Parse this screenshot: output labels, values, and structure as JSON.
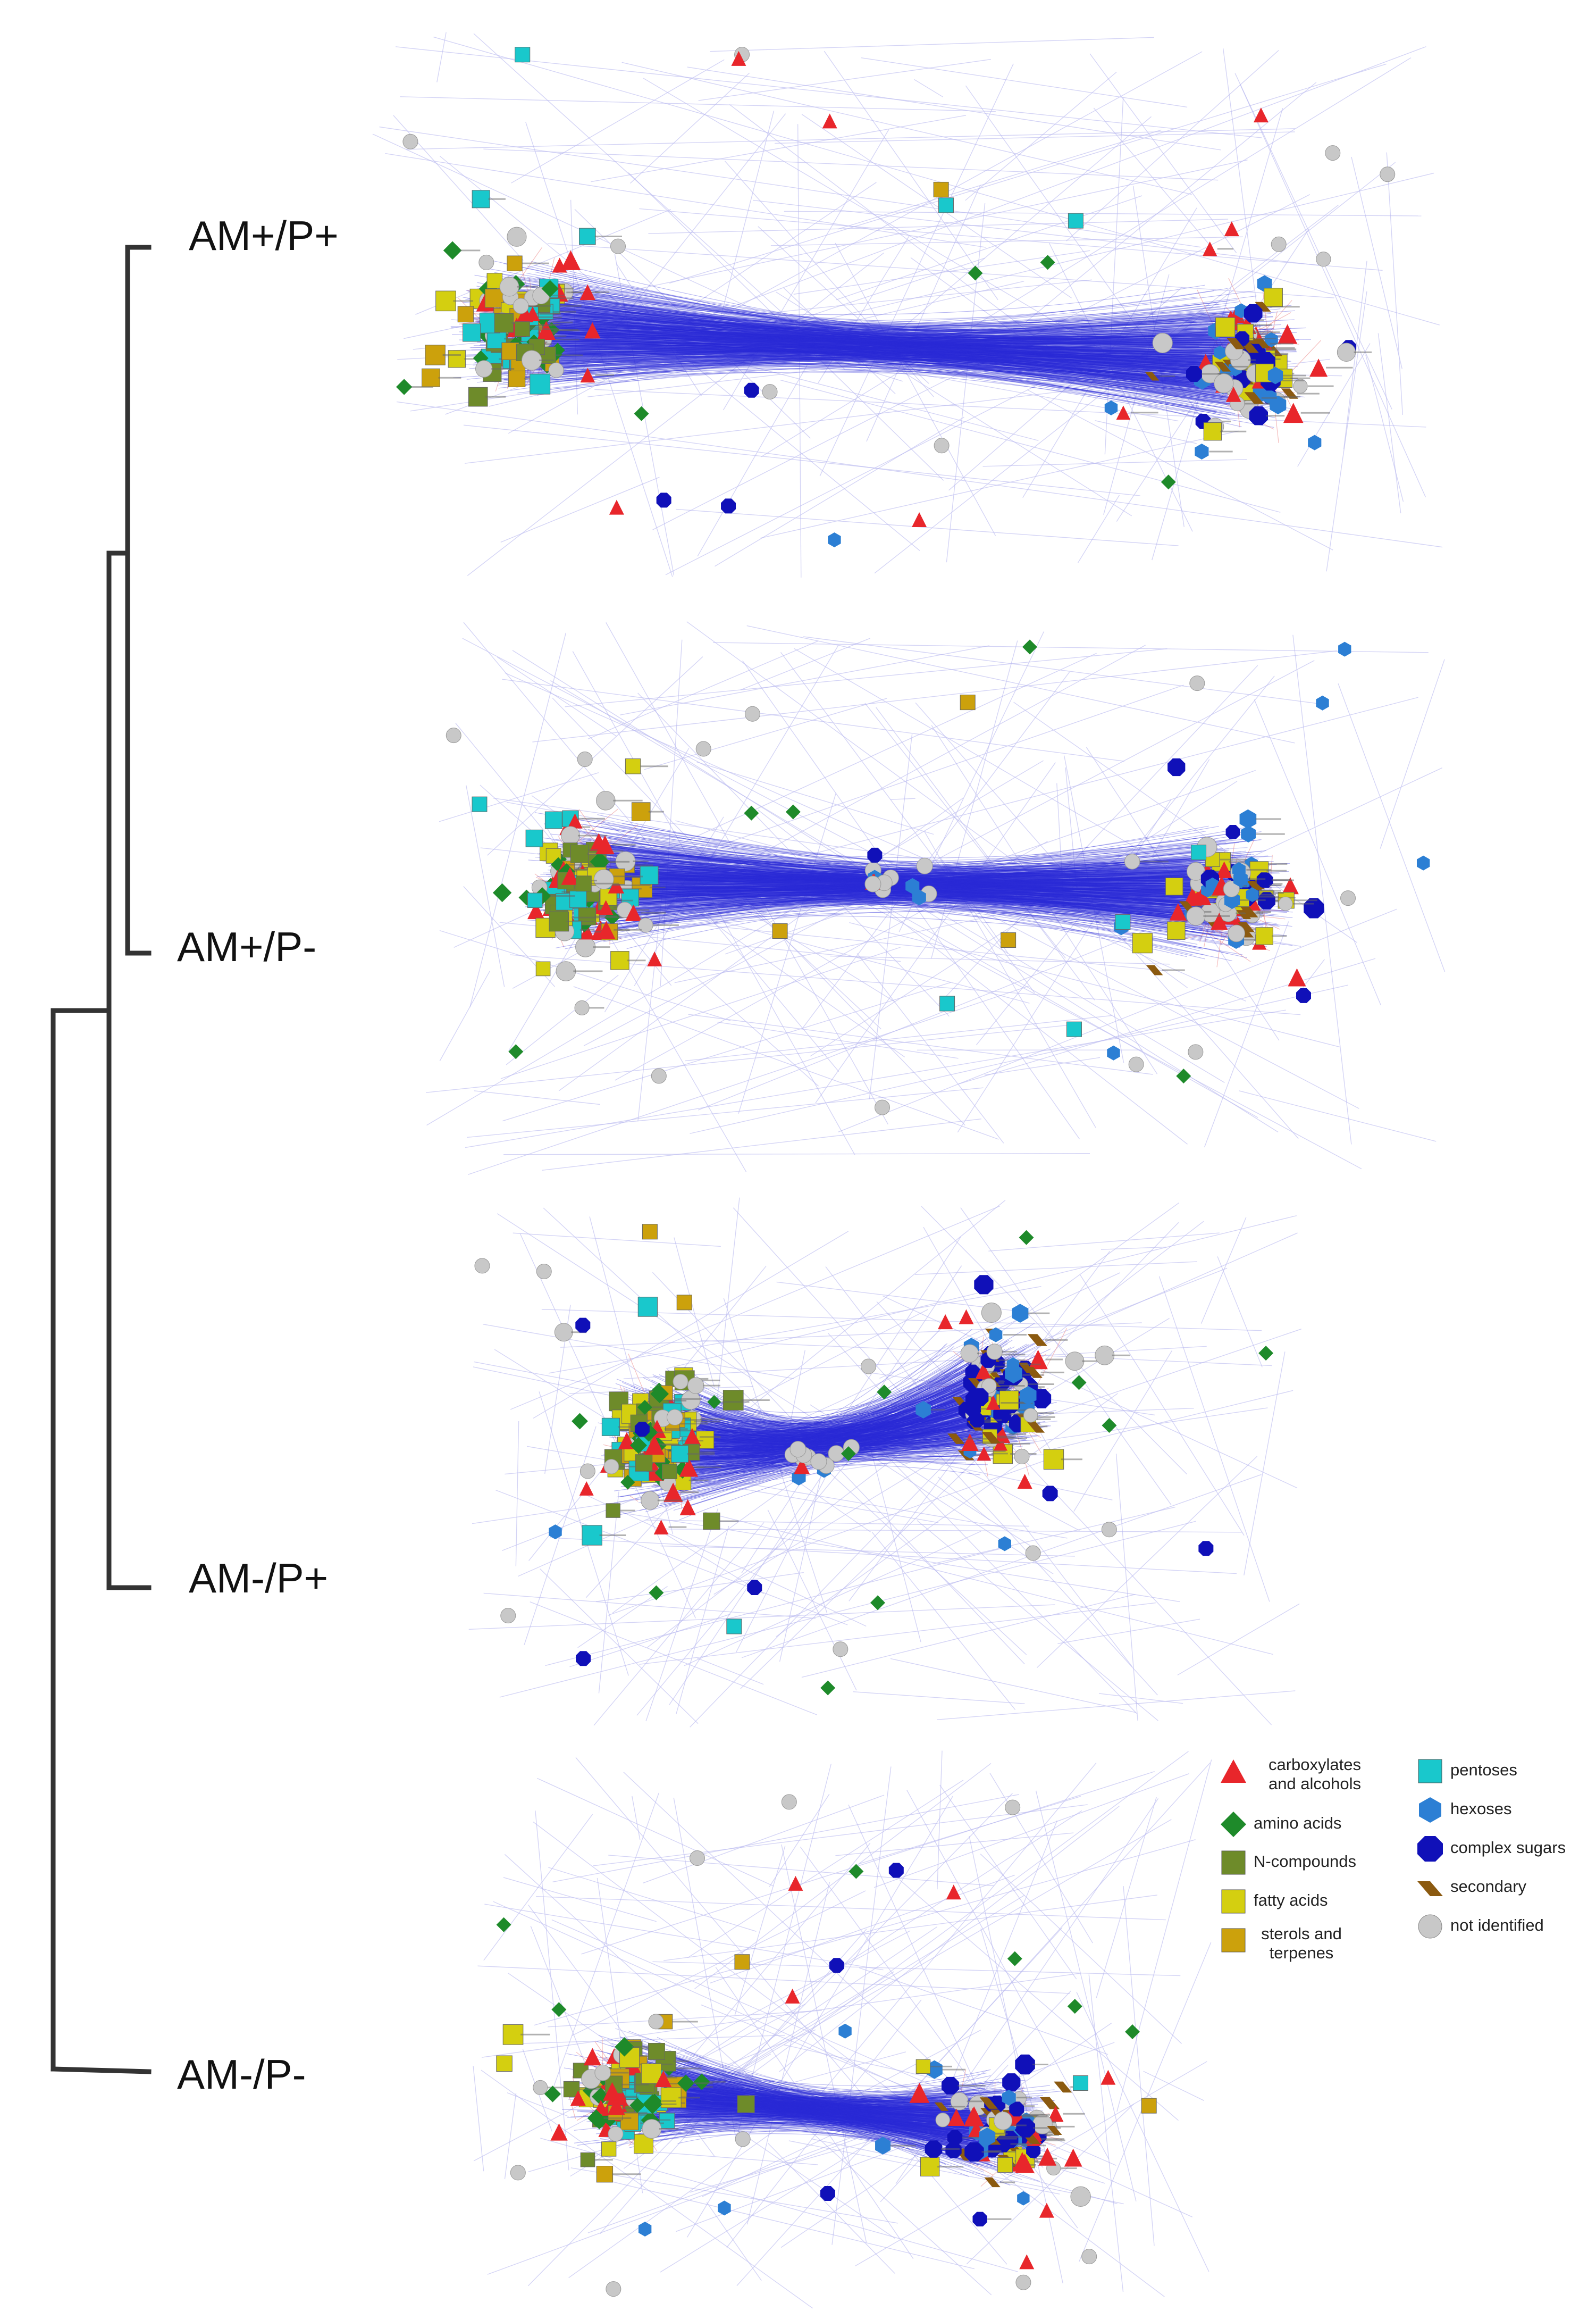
{
  "groups": [
    {
      "label": "AM+/P+",
      "seed": 11
    },
    {
      "label": "AM+/P-",
      "seed": 23
    },
    {
      "label": "AM-/P+",
      "seed": 37
    },
    {
      "label": "AM-/P-",
      "seed": 53
    }
  ],
  "legend": [
    {
      "key": "carboxylates",
      "label": "carboxylates and alcohols",
      "shape": "triangle",
      "color": "#e8262b"
    },
    {
      "key": "amino",
      "label": "amino acids",
      "shape": "diamond",
      "color": "#1e8a2a"
    },
    {
      "key": "ncomp",
      "label": "N-compounds",
      "shape": "square",
      "color": "#6e8b2a"
    },
    {
      "key": "fatty",
      "label": "fatty acids",
      "shape": "square",
      "color": "#d4cf10"
    },
    {
      "key": "sterols",
      "label": "sterols and terpenes",
      "shape": "square",
      "color": "#cca10c"
    },
    {
      "key": "pentoses",
      "label": "pentoses",
      "shape": "square",
      "color": "#19c8cc"
    },
    {
      "key": "hexoses",
      "label": "hexoses",
      "shape": "hexagon",
      "color": "#2c7fd4"
    },
    {
      "key": "complex",
      "label": "complex sugars",
      "shape": "octagon",
      "color": "#1010b8"
    },
    {
      "key": "secondary",
      "label": "secondary",
      "shape": "parallelogram",
      "color": "#8b5a10"
    },
    {
      "key": "notid",
      "label": "not identified",
      "shape": "circle",
      "color": "#c8c8c8"
    }
  ],
  "colors": {
    "edge_main": "#2a2ad8",
    "edge_faint": "#b9b9f0",
    "edge_pink": "#f0a0a0",
    "tree": "#333333"
  }
}
